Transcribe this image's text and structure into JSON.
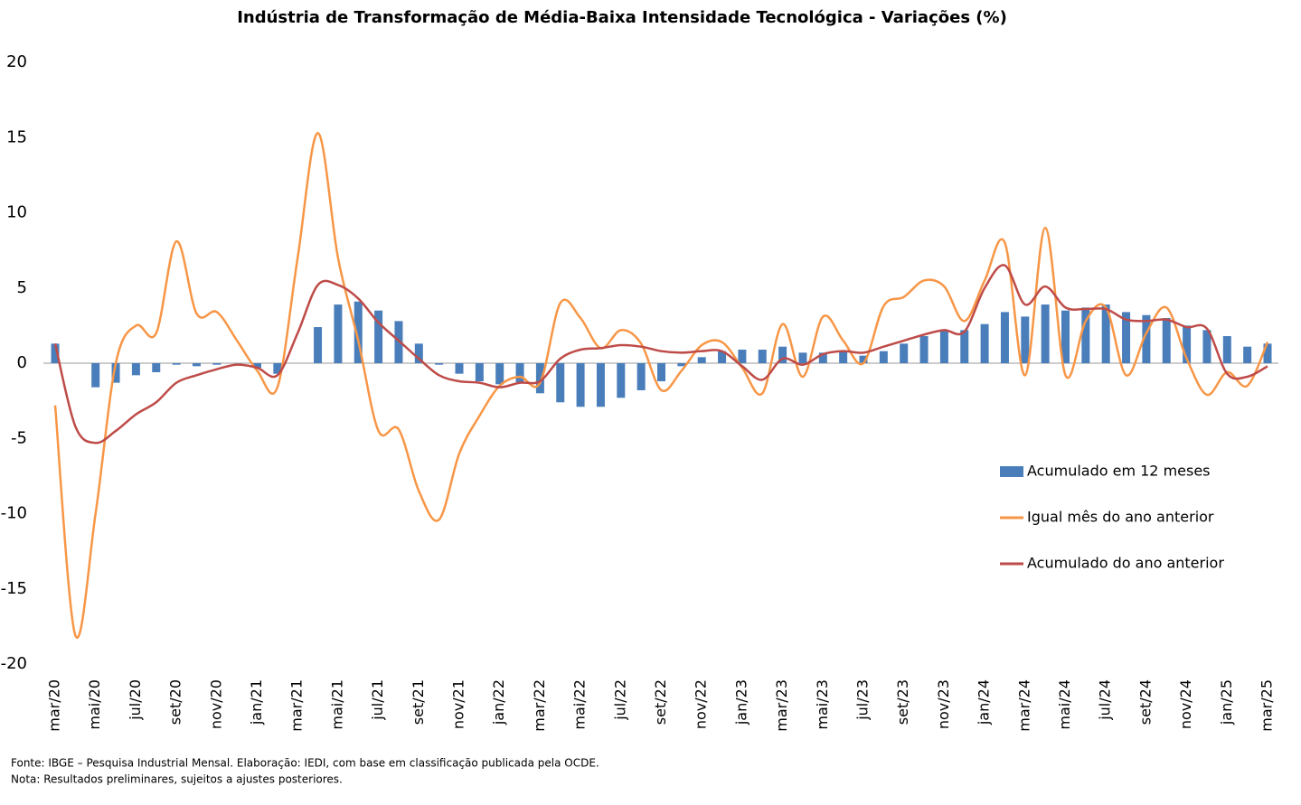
{
  "chart_data": {
    "type": "bar-line",
    "title": "Indústria de Transformação de Média-Baixa Intensidade Tecnológica - Variações (%)",
    "categories": [
      "mar/20",
      null,
      "mai/20",
      null,
      "jul/20",
      null,
      "set/20",
      null,
      "nov/20",
      null,
      "jan/21",
      null,
      "mar/21",
      null,
      "mai/21",
      null,
      "jul/21",
      null,
      "set/21",
      null,
      "nov/21",
      null,
      "jan/22",
      null,
      "mar/22",
      null,
      "mai/22",
      null,
      "jul/22",
      null,
      "set/22",
      null,
      "nov/22",
      null,
      "jan/23",
      null,
      "mar/23",
      null,
      "mai/23",
      null,
      "jul/23",
      null,
      "set/23",
      null,
      "nov/23",
      null,
      "jan/24",
      null,
      "mar/24",
      null,
      "mai/24",
      null,
      "jul/24",
      null,
      "set/24",
      null,
      "nov/24",
      null,
      "jan/25",
      null,
      "mar/25"
    ],
    "series": [
      {
        "name": "Acumulado em 12 meses",
        "type": "bar",
        "color": "#4a7ebb",
        "values": [
          1.3,
          0,
          -1.6,
          -1.3,
          -0.8,
          -0.6,
          -0.1,
          -0.2,
          -0.1,
          0,
          -0.3,
          -0.7,
          0,
          2.4,
          3.9,
          4.1,
          3.5,
          2.8,
          1.3,
          -0.1,
          -0.7,
          -1.2,
          -1.4,
          -1.3,
          -2.0,
          -2.6,
          -2.9,
          -2.9,
          -2.3,
          -1.8,
          -1.2,
          -0.2,
          0.4,
          0.8,
          0.9,
          0.9,
          1.1,
          0.7,
          0.7,
          0.8,
          0.5,
          0.8,
          1.3,
          1.8,
          2.2,
          2.2,
          2.6,
          3.4,
          3.1,
          3.9,
          3.5,
          3.7,
          3.9,
          3.4,
          3.2,
          3.0,
          2.5,
          2.2,
          1.8,
          1.1,
          1.3
        ]
      },
      {
        "name": "Igual mês do ano anterior",
        "type": "line",
        "color": "#f79646",
        "values": [
          -2.8,
          -18.1,
          -10,
          0,
          2.5,
          2.0,
          8.1,
          3.3,
          3.4,
          1.5,
          -0.5,
          -1.6,
          7.0,
          15.3,
          7.0,
          1.5,
          -4.5,
          -4.4,
          -8.5,
          -10.4,
          -6.0,
          -3.5,
          -1.5,
          -0.9,
          -1.3,
          4.0,
          3.0,
          1.0,
          2.2,
          1.3,
          -1.8,
          -0.5,
          1.2,
          1.4,
          -0.3,
          -2.0,
          2.6,
          -0.9,
          3.1,
          1.5,
          0.0,
          3.8,
          4.4,
          5.5,
          5.1,
          2.8,
          5.5,
          8.0,
          -0.8,
          9.0,
          -0.8,
          2.8,
          3.7,
          -0.8,
          2.0,
          3.7,
          0.3,
          -2.1,
          -0.6,
          -1.5,
          1.4
        ]
      },
      {
        "name": "Acumulado do ano anterior",
        "type": "line",
        "color": "#be4b48",
        "values": [
          1.3,
          -4.2,
          -5.3,
          -4.5,
          -3.4,
          -2.6,
          -1.3,
          -0.8,
          -0.4,
          -0.1,
          -0.3,
          -0.8,
          2.0,
          5.2,
          5.2,
          4.3,
          2.7,
          1.5,
          0.3,
          -0.8,
          -1.2,
          -1.3,
          -1.6,
          -1.3,
          -1.2,
          0.3,
          0.9,
          1.0,
          1.2,
          1.1,
          0.8,
          0.7,
          0.8,
          0.8,
          -0.2,
          -1.1,
          0.3,
          -0.1,
          0.6,
          0.8,
          0.7,
          1.1,
          1.5,
          1.9,
          2.2,
          2.1,
          5.0,
          6.5,
          3.9,
          5.1,
          3.7,
          3.6,
          3.6,
          2.9,
          2.8,
          2.9,
          2.4,
          2.3,
          -0.7,
          -0.9,
          -0.2
        ]
      }
    ],
    "ylim": [
      -20,
      20
    ],
    "yticks": [
      -20,
      -15,
      -10,
      -5,
      0,
      5,
      10,
      15,
      20
    ],
    "grid": false,
    "legend": "right",
    "notes": [
      "Fonte: IBGE – Pesquisa Industrial Mensal. Elaboração: IEDI, com base em classificação publicada pela OCDE.",
      "Nota: Resultados preliminares, sujeitos a ajustes posteriores."
    ]
  }
}
